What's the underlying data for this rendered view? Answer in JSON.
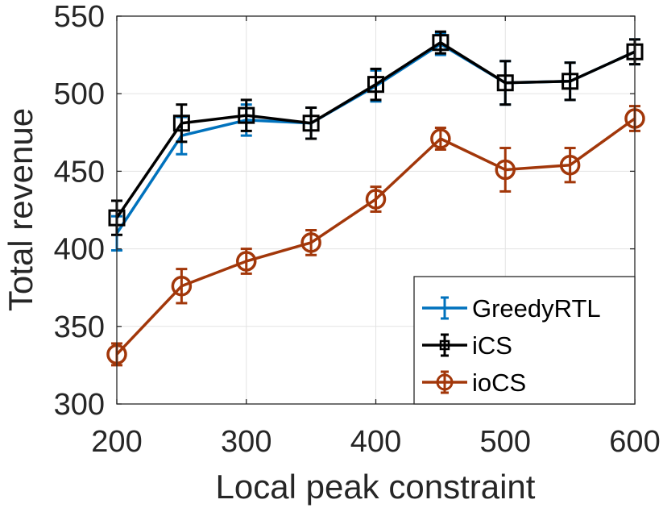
{
  "chart_data": {
    "type": "line",
    "title": "",
    "xlabel": "Local peak constraint",
    "ylabel": "Total revenue",
    "xlim": [
      200,
      600
    ],
    "ylim": [
      300,
      550
    ],
    "xticks": [
      200,
      300,
      400,
      500,
      600
    ],
    "yticks": [
      300,
      350,
      400,
      450,
      500,
      550
    ],
    "grid": true,
    "legend_position": "bottom-right",
    "x": [
      200,
      250,
      300,
      350,
      400,
      450,
      500,
      550,
      600
    ],
    "series": [
      {
        "name": "GreedyRTL",
        "color": "#0072BD",
        "marker": "none",
        "values": [
          410,
          473,
          483,
          481,
          505,
          532,
          507,
          508,
          527
        ],
        "errors": [
          11,
          12,
          10,
          10,
          10,
          7,
          14,
          12,
          8
        ]
      },
      {
        "name": "iCS",
        "color": "#000000",
        "marker": "square",
        "values": [
          420,
          481,
          486,
          481,
          506,
          533,
          507,
          508,
          527
        ],
        "errors": [
          11,
          12,
          10,
          10,
          10,
          7,
          14,
          12,
          8
        ]
      },
      {
        "name": "ioCS",
        "color": "#A2370A",
        "marker": "circle",
        "values": [
          332,
          376,
          392,
          404,
          432,
          471,
          451,
          454,
          484
        ],
        "errors": [
          7,
          11,
          8,
          8,
          8,
          7,
          14,
          11,
          8
        ]
      }
    ]
  }
}
